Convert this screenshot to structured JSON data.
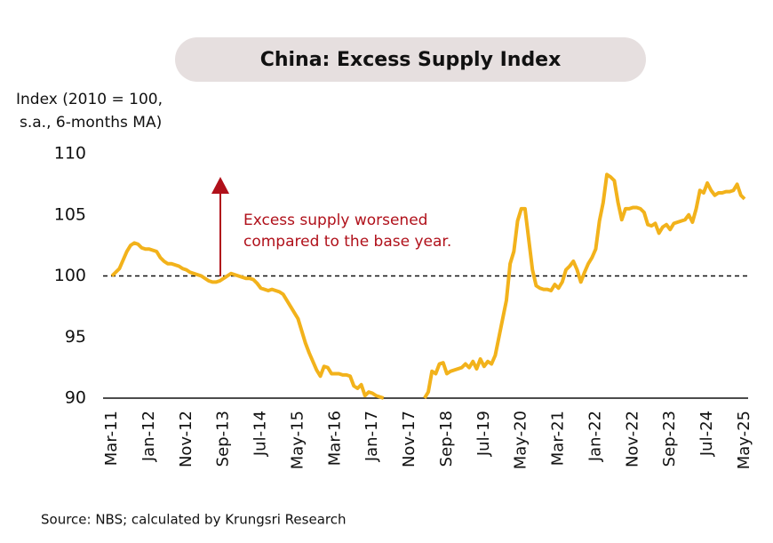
{
  "chart_data": {
    "type": "line",
    "title": "China: Excess Supply Index",
    "y_label": [
      "Index (2010 = 100,",
      "s.a., 6-months MA)"
    ],
    "annotation": [
      "Excess supply worsened",
      "compared to the base year."
    ],
    "source": "Source: NBS; calculated by Krungsri Research",
    "reference_line": 100,
    "ylim": [
      90,
      110
    ],
    "yticks": [
      90,
      95,
      100,
      105,
      110
    ],
    "categories": [
      "Mar-11",
      null,
      null,
      null,
      null,
      null,
      null,
      null,
      null,
      null,
      "Jan-12",
      null,
      null,
      null,
      null,
      null,
      null,
      null,
      null,
      null,
      "Nov-12",
      null,
      null,
      null,
      null,
      null,
      null,
      null,
      null,
      null,
      "Sep-13",
      null,
      null,
      null,
      null,
      null,
      null,
      null,
      null,
      null,
      "Jul-14",
      null,
      null,
      null,
      null,
      null,
      null,
      null,
      null,
      null,
      "May-15",
      null,
      null,
      null,
      null,
      null,
      null,
      null,
      null,
      null,
      "Mar-16",
      null,
      null,
      null,
      null,
      null,
      null,
      null,
      null,
      null,
      "Jan-17",
      null,
      null,
      null,
      null,
      null,
      null,
      null,
      null,
      null,
      "Nov-17",
      null,
      null,
      null,
      null,
      null,
      null,
      null,
      null,
      null,
      "Sep-18",
      null,
      null,
      null,
      null,
      null,
      null,
      null,
      null,
      null,
      "Jul-19",
      null,
      null,
      null,
      null,
      null,
      null,
      null,
      null,
      null,
      "May-20",
      null,
      null,
      null,
      null,
      null,
      null,
      null,
      null,
      null,
      "Mar-21",
      null,
      null,
      null,
      null,
      null,
      null,
      null,
      null,
      null,
      "Jan-22",
      null,
      null,
      null,
      null,
      null,
      null,
      null,
      null,
      null,
      "Nov-22",
      null,
      null,
      null,
      null,
      null,
      null,
      null,
      null,
      null,
      "Sep-23",
      null,
      null,
      null,
      null,
      null,
      null,
      null,
      null,
      null,
      "Jul-24",
      null,
      null,
      null,
      null,
      null,
      null,
      null,
      null,
      null,
      "May-25"
    ],
    "series": [
      {
        "name": "Excess Supply Index",
        "color": "#f2b21b",
        "values": [
          100,
          100.3,
          100.6,
          101.3,
          102,
          102.5,
          102.7,
          102.6,
          102.3,
          102.2,
          102.2,
          102.1,
          102,
          101.5,
          101.2,
          101,
          101,
          100.9,
          100.8,
          100.6,
          100.5,
          100.3,
          100.2,
          100.1,
          100,
          99.8,
          99.6,
          99.5,
          99.5,
          99.6,
          99.8,
          100,
          100.2,
          100.1,
          100,
          99.9,
          99.8,
          99.8,
          99.7,
          99.4,
          99,
          98.9,
          98.8,
          98.9,
          98.8,
          98.7,
          98.5,
          98,
          97.5,
          97,
          96.5,
          95.5,
          94.5,
          93.7,
          93,
          92.3,
          91.8,
          92.6,
          92.5,
          92,
          92,
          92,
          91.9,
          91.9,
          91.8,
          91,
          90.8,
          91.1,
          90.2,
          90.5,
          90.4,
          90.2,
          90.1,
          90,
          null,
          null,
          null,
          null,
          null,
          null,
          null,
          null,
          null,
          null,
          90,
          90.5,
          92.2,
          92,
          92.8,
          92.9,
          92,
          92.2,
          92.3,
          92.4,
          92.5,
          92.8,
          92.5,
          93,
          92.4,
          93.2,
          92.6,
          93,
          92.8,
          93.5,
          95,
          96.5,
          98,
          101,
          102,
          104.5,
          105.5,
          105.5,
          103,
          100.5,
          99.2,
          99,
          98.9,
          98.9,
          98.8,
          99.3,
          99,
          99.5,
          100.5,
          100.8,
          101.2,
          100.5,
          99.5,
          100.3,
          101,
          101.5,
          102.2,
          104.5,
          106,
          108.3,
          108.1,
          107.8,
          106,
          104.6,
          105.5,
          105.5,
          105.6,
          105.6,
          105.5,
          105.2,
          104.2,
          104.1,
          104.3,
          103.5,
          104,
          104.2,
          103.8,
          104.3,
          104.4,
          104.5,
          104.6,
          105,
          104.4,
          105.5,
          107,
          106.8,
          107.6,
          107,
          106.6,
          106.8,
          106.8,
          106.9,
          106.9,
          107,
          107.5,
          106.6,
          106.3
        ]
      }
    ]
  }
}
